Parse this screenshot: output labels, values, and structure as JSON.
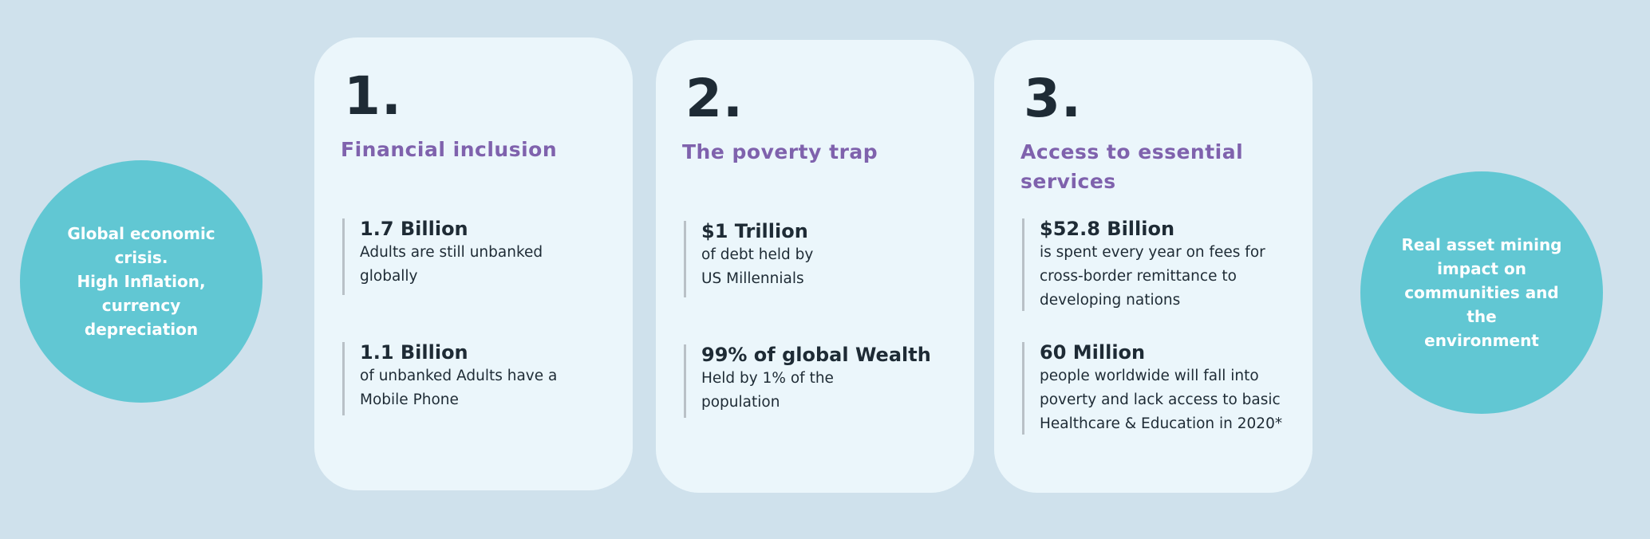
{
  "left_circle": {
    "text": "Global economic\ncrisis.\nHigh Inflation,\ncurrency\ndepreciation"
  },
  "right_circle": {
    "text": "Real asset  mining\nimpact on\ncommunities and the\nenvironment"
  },
  "cards": [
    {
      "number": "1.",
      "title": "Financial inclusion",
      "stats": [
        {
          "headline": "1.7 Billion",
          "text": "Adults are still unbanked globally"
        },
        {
          "headline": "1.1 Billion",
          "text": "of unbanked Adults have a Mobile Phone"
        }
      ]
    },
    {
      "number": "2.",
      "title": "The poverty trap",
      "stats": [
        {
          "headline": "$1 Trillion",
          "text": "of debt held by US Millennials"
        },
        {
          "headline": "99% of global Wealth",
          "text": "Held by 1% of the population"
        }
      ]
    },
    {
      "number": "3.",
      "title": "Access to essential services",
      "stats": [
        {
          "headline": "$52.8 Billion",
          "text": "is spent every year on fees for cross-border remittance to developing nations"
        },
        {
          "headline": "60 Million",
          "text": "people worldwide will fall into poverty and lack access to basic Healthcare & Education in 2020*"
        }
      ]
    }
  ],
  "colors": {
    "background": "#cfe1ec",
    "card": "#ebf6fb",
    "circle": "#61c7d3",
    "title": "#7f62ad",
    "text": "#1e2b35"
  }
}
